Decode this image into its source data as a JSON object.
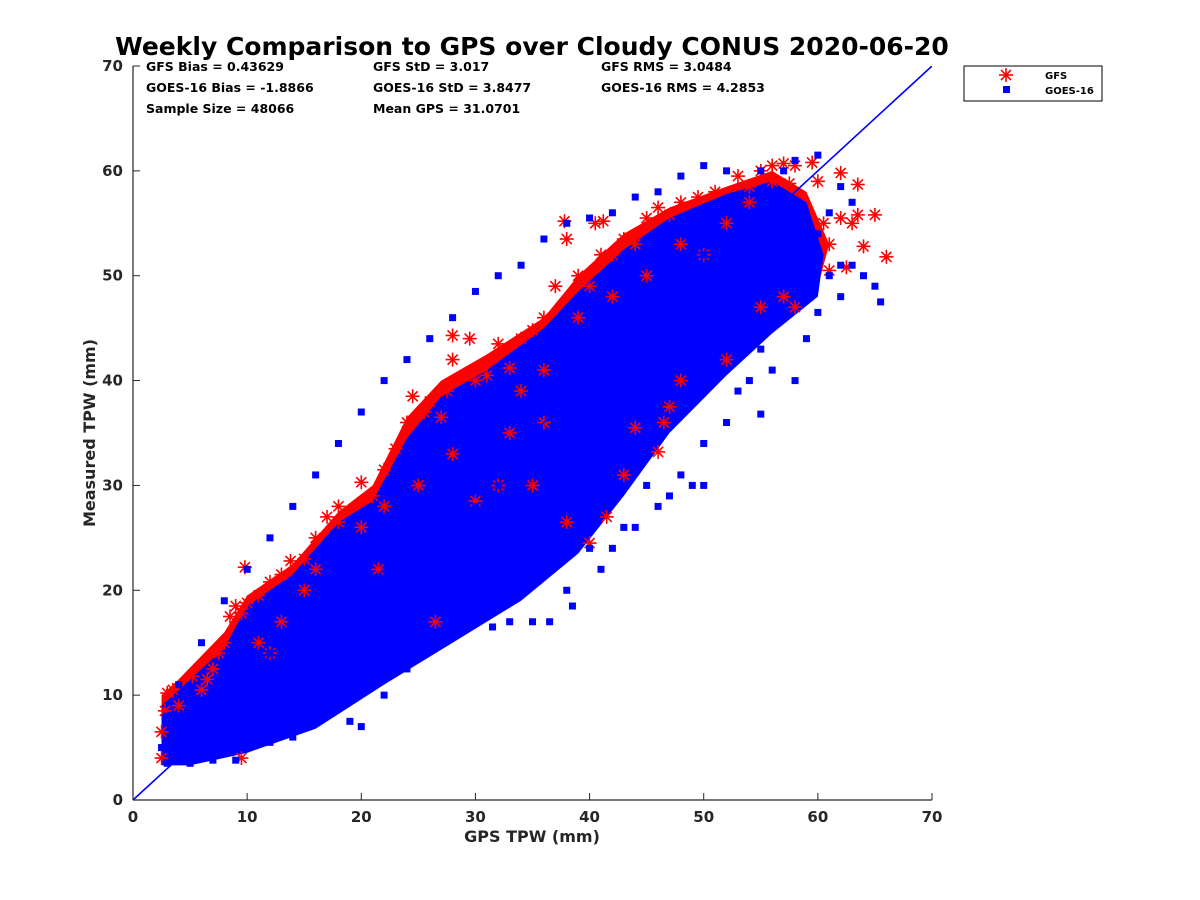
{
  "chart_data": {
    "type": "scatter",
    "title": "Weekly Comparison to GPS over Cloudy CONUS 2020-06-20",
    "xlabel": "GPS TPW (mm)",
    "ylabel": "Measured TPW (mm)",
    "xlim": [
      0,
      70
    ],
    "ylim": [
      0,
      70
    ],
    "x_ticks": [
      "0",
      "10",
      "20",
      "30",
      "40",
      "50",
      "60",
      "70"
    ],
    "y_ticks": [
      "0",
      "10",
      "20",
      "30",
      "40",
      "50",
      "60",
      "70"
    ],
    "grid": false,
    "legend_position": "outside top-right",
    "reference_line": {
      "name": "1:1",
      "x": [
        0,
        70
      ],
      "y": [
        0,
        70
      ],
      "color": "#0000ff"
    },
    "stats": [
      [
        "GFS Bias = 0.43629",
        "GFS StD = 3.017",
        "GFS RMS = 3.0484"
      ],
      [
        "GOES-16 Bias = -1.8866",
        "GOES-16 StD = 3.8477",
        "GOES-16 RMS = 4.2853"
      ],
      [
        "Sample Size = 48066",
        "Mean GPS = 31.0701"
      ]
    ],
    "series": [
      {
        "name": "GFS",
        "marker": "asterisk",
        "color": "#ff0000",
        "points": [
          [
            2.5,
            4
          ],
          [
            2.5,
            6.5
          ],
          [
            2.8,
            8.5
          ],
          [
            3,
            10.2
          ],
          [
            3.5,
            10.5
          ],
          [
            4,
            9
          ],
          [
            5.2,
            11.8
          ],
          [
            6,
            10.5
          ],
          [
            6.5,
            11.5
          ],
          [
            7,
            12.5
          ],
          [
            7.5,
            14
          ],
          [
            8,
            15
          ],
          [
            8.5,
            17.5
          ],
          [
            9,
            18.5
          ],
          [
            9.5,
            17.8
          ],
          [
            9.8,
            22.2
          ],
          [
            10,
            18.8
          ],
          [
            11,
            19.5
          ],
          [
            12,
            20.8
          ],
          [
            13,
            21.5
          ],
          [
            13.8,
            22.8
          ],
          [
            15,
            23
          ],
          [
            16,
            25
          ],
          [
            17,
            27
          ],
          [
            18,
            28
          ],
          [
            20,
            30.3
          ],
          [
            21,
            29
          ],
          [
            22,
            31.5
          ],
          [
            23,
            33.5
          ],
          [
            24,
            36
          ],
          [
            24.5,
            38.5
          ],
          [
            25.5,
            37
          ],
          [
            26,
            38
          ],
          [
            27,
            36.5
          ],
          [
            27.5,
            39
          ],
          [
            28,
            44.3
          ],
          [
            28,
            42
          ],
          [
            29.5,
            44
          ],
          [
            30,
            40
          ],
          [
            31,
            40.5
          ],
          [
            32,
            43.5
          ],
          [
            33,
            41.2
          ],
          [
            34,
            44
          ],
          [
            35,
            44.8
          ],
          [
            36,
            46
          ],
          [
            37,
            49
          ],
          [
            37.8,
            55.2
          ],
          [
            38,
            53.5
          ],
          [
            39,
            50
          ],
          [
            40,
            49
          ],
          [
            40.5,
            55
          ],
          [
            41,
            52
          ],
          [
            41.2,
            55.2
          ],
          [
            42,
            52
          ],
          [
            43,
            53.5
          ],
          [
            44,
            53
          ],
          [
            45,
            55.5
          ],
          [
            46,
            56.5
          ],
          [
            47,
            55.8
          ],
          [
            48,
            57
          ],
          [
            49.5,
            57.5
          ],
          [
            51,
            58
          ],
          [
            53,
            59.5
          ],
          [
            54,
            58.5
          ],
          [
            55,
            60
          ],
          [
            56,
            60.5
          ],
          [
            57,
            60.7
          ],
          [
            57.5,
            58.8
          ],
          [
            58,
            60.5
          ],
          [
            59.5,
            60.8
          ],
          [
            60,
            59
          ],
          [
            60.5,
            55
          ],
          [
            61,
            53
          ],
          [
            61,
            50.5
          ],
          [
            62,
            59.8
          ],
          [
            62,
            55.5
          ],
          [
            62.5,
            50.8
          ],
          [
            63,
            55
          ],
          [
            63.5,
            55.8
          ],
          [
            64,
            52.8
          ],
          [
            63.5,
            58.7
          ],
          [
            65,
            55.8
          ],
          [
            66,
            51.8
          ],
          [
            38,
            26.5
          ],
          [
            40,
            24.5
          ],
          [
            41.5,
            27
          ],
          [
            43,
            31
          ],
          [
            44,
            35.5
          ],
          [
            46.5,
            36
          ],
          [
            47,
            37.5
          ],
          [
            46,
            33.2
          ],
          [
            48,
            40
          ],
          [
            52,
            42
          ],
          [
            55,
            47
          ],
          [
            57,
            48
          ],
          [
            58,
            47
          ],
          [
            26.5,
            17
          ],
          [
            21.5,
            22
          ],
          [
            9.5,
            4
          ],
          [
            30,
            28.5
          ],
          [
            32,
            30
          ],
          [
            35,
            30
          ],
          [
            36,
            36
          ],
          [
            33,
            35
          ],
          [
            25,
            30
          ],
          [
            18,
            26.5
          ],
          [
            20,
            26
          ],
          [
            15,
            20
          ],
          [
            12,
            14
          ],
          [
            11,
            15
          ],
          [
            13,
            17
          ],
          [
            16,
            22
          ],
          [
            22,
            28
          ],
          [
            28,
            33
          ],
          [
            34,
            39
          ],
          [
            36,
            41
          ],
          [
            39,
            46
          ],
          [
            42,
            48
          ],
          [
            45,
            50
          ],
          [
            48,
            53
          ],
          [
            50,
            52
          ],
          [
            52,
            55
          ],
          [
            54,
            57
          ],
          [
            56,
            59
          ]
        ]
      },
      {
        "name": "GOES-16",
        "marker": "square",
        "color": "#0000ff",
        "points": [
          [
            9,
            3.8
          ],
          [
            12,
            5.5
          ],
          [
            14,
            6
          ],
          [
            16,
            8
          ],
          [
            18,
            9.5
          ],
          [
            19,
            7.5
          ],
          [
            20,
            7
          ],
          [
            22,
            10
          ],
          [
            24,
            12.5
          ],
          [
            26,
            15
          ],
          [
            27,
            19
          ],
          [
            28,
            17
          ],
          [
            30,
            18
          ],
          [
            31.5,
            16.5
          ],
          [
            33,
            17
          ],
          [
            35,
            17
          ],
          [
            36.5,
            17
          ],
          [
            38,
            20
          ],
          [
            38.5,
            18.5
          ],
          [
            40,
            24
          ],
          [
            41,
            22
          ],
          [
            42,
            24
          ],
          [
            43,
            26
          ],
          [
            44,
            26
          ],
          [
            45,
            30
          ],
          [
            46,
            28
          ],
          [
            47,
            29
          ],
          [
            48,
            31
          ],
          [
            49,
            30
          ],
          [
            50,
            30
          ],
          [
            50,
            34
          ],
          [
            52,
            36
          ],
          [
            53,
            39
          ],
          [
            54,
            40
          ],
          [
            55,
            43
          ],
          [
            56,
            41
          ],
          [
            55,
            36.8
          ],
          [
            58,
            40
          ],
          [
            59,
            44
          ],
          [
            60,
            46.5
          ],
          [
            61,
            50
          ],
          [
            62,
            51
          ],
          [
            63,
            51
          ],
          [
            64,
            50
          ],
          [
            65,
            49
          ],
          [
            65.5,
            47.5
          ],
          [
            62,
            48
          ],
          [
            60,
            52
          ],
          [
            61,
            56
          ],
          [
            63,
            57
          ],
          [
            62,
            58.5
          ],
          [
            60,
            61.5
          ],
          [
            58,
            61
          ],
          [
            57,
            60
          ],
          [
            55,
            60
          ],
          [
            52,
            60
          ],
          [
            50,
            60.5
          ],
          [
            48,
            59.5
          ],
          [
            46,
            58
          ],
          [
            44,
            57.5
          ],
          [
            42,
            56
          ],
          [
            40,
            55.5
          ],
          [
            38,
            55
          ],
          [
            36,
            53.5
          ],
          [
            34,
            51
          ],
          [
            32,
            50
          ],
          [
            30,
            48.5
          ],
          [
            28,
            46
          ],
          [
            26,
            44
          ],
          [
            24,
            42
          ],
          [
            22,
            40
          ],
          [
            20,
            37
          ],
          [
            18,
            34
          ],
          [
            16,
            31
          ],
          [
            14,
            28
          ],
          [
            12,
            25
          ],
          [
            10,
            22
          ],
          [
            8,
            19
          ],
          [
            6,
            15
          ],
          [
            4,
            11
          ],
          [
            3,
            8
          ],
          [
            2.5,
            5
          ],
          [
            3,
            3.5
          ],
          [
            5,
            3.5
          ],
          [
            7,
            3.8
          ],
          [
            5,
            6
          ],
          [
            6,
            8
          ],
          [
            8,
            10
          ],
          [
            10,
            12
          ],
          [
            12,
            14
          ],
          [
            14,
            16
          ],
          [
            16,
            18
          ],
          [
            18,
            20
          ],
          [
            20,
            22
          ],
          [
            22,
            24
          ],
          [
            24,
            26
          ],
          [
            26,
            28
          ],
          [
            28,
            30
          ],
          [
            30,
            32
          ],
          [
            32,
            34
          ],
          [
            34,
            36
          ],
          [
            36,
            38
          ],
          [
            38,
            40
          ],
          [
            40,
            42
          ],
          [
            42,
            44
          ],
          [
            44,
            46
          ],
          [
            46,
            48
          ],
          [
            48,
            50
          ],
          [
            50,
            52
          ],
          [
            52,
            54
          ],
          [
            54,
            56
          ],
          [
            56,
            57
          ],
          [
            10,
            8
          ],
          [
            12,
            10
          ],
          [
            14,
            12
          ],
          [
            16,
            14
          ],
          [
            18,
            16
          ],
          [
            20,
            18
          ],
          [
            22,
            20
          ],
          [
            24,
            22
          ],
          [
            26,
            24
          ],
          [
            28,
            26
          ],
          [
            30,
            28
          ],
          [
            32,
            30
          ],
          [
            34,
            32
          ],
          [
            36,
            34
          ],
          [
            38,
            36
          ],
          [
            40,
            38
          ],
          [
            42,
            40
          ],
          [
            44,
            42
          ],
          [
            46,
            44
          ],
          [
            48,
            46
          ],
          [
            50,
            48
          ],
          [
            52,
            50
          ],
          [
            54,
            52
          ],
          [
            56,
            54
          ],
          [
            58,
            55
          ],
          [
            7,
            10
          ],
          [
            9,
            13
          ],
          [
            11,
            16
          ],
          [
            13,
            19
          ],
          [
            15,
            21
          ],
          [
            17,
            23
          ],
          [
            19,
            25
          ],
          [
            21,
            27
          ],
          [
            23,
            29
          ],
          [
            25,
            31
          ],
          [
            27,
            33
          ],
          [
            29,
            35
          ],
          [
            31,
            37
          ],
          [
            33,
            39
          ],
          [
            35,
            41
          ],
          [
            37,
            43
          ],
          [
            39,
            45
          ],
          [
            41,
            47
          ],
          [
            43,
            49
          ],
          [
            45,
            51
          ],
          [
            47,
            53
          ],
          [
            49,
            55
          ],
          [
            51,
            56
          ],
          [
            53,
            57
          ],
          [
            55,
            58
          ],
          [
            6,
            5
          ],
          [
            8,
            6
          ],
          [
            10,
            7
          ],
          [
            12,
            8
          ],
          [
            14,
            9
          ],
          [
            16,
            11
          ],
          [
            18,
            13
          ],
          [
            20,
            15
          ],
          [
            22,
            17
          ],
          [
            24,
            19
          ],
          [
            26,
            21
          ],
          [
            28,
            23
          ],
          [
            30,
            25
          ],
          [
            32,
            27
          ],
          [
            34,
            29
          ],
          [
            36,
            31
          ],
          [
            38,
            33
          ],
          [
            40,
            35
          ],
          [
            42,
            37
          ],
          [
            44,
            39
          ],
          [
            46,
            41
          ],
          [
            48,
            43
          ],
          [
            50,
            45
          ],
          [
            52,
            47
          ],
          [
            54,
            49
          ],
          [
            56,
            51
          ],
          [
            58,
            50
          ],
          [
            59,
            52
          ],
          [
            60,
            54
          ]
        ]
      }
    ]
  }
}
